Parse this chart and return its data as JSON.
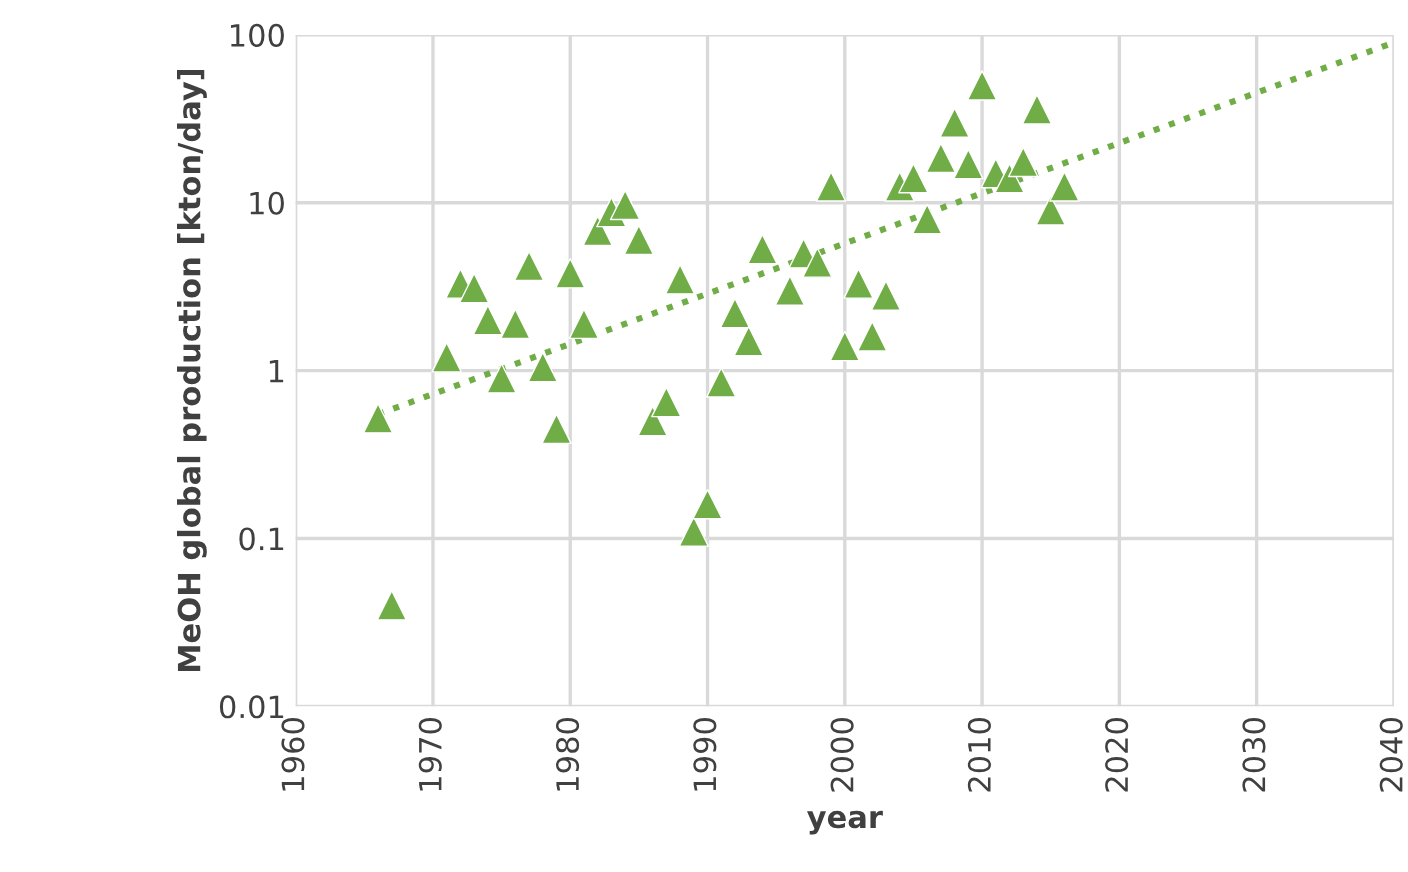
{
  "chart_data": {
    "type": "scatter",
    "xlabel": "year",
    "ylabel": "MeOH global production [kton/day]",
    "log": "y",
    "grid": true,
    "xlim": [
      1960,
      2040
    ],
    "xticks": [
      1960,
      1970,
      1980,
      1990,
      2000,
      2010,
      2020,
      2030,
      2040
    ],
    "ylim": [
      0.01,
      100
    ],
    "yticks": [
      0.01,
      0.1,
      1,
      10,
      100
    ],
    "series": [
      {
        "marker": "triangle",
        "color": "#70ad47",
        "x": [
          1966,
          1967,
          1971,
          1972,
          1973,
          1974,
          1975,
          1976,
          1977,
          1978,
          1979,
          1980,
          1981,
          1982,
          1983,
          1984,
          1985,
          1986,
          1987,
          1988,
          1989,
          1990,
          1991,
          1992,
          1993,
          1994,
          1996,
          1997,
          1998,
          1999,
          2000,
          2001,
          2002,
          2003,
          2004,
          2005,
          2006,
          2007,
          2008,
          2009,
          2010,
          2011,
          2012,
          2013,
          2014,
          2015,
          2016
        ],
        "values": [
          0.52,
          0.04,
          1.2,
          3.3,
          3.1,
          2.0,
          0.9,
          1.9,
          4.2,
          1.05,
          0.45,
          3.8,
          1.9,
          6.8,
          8.8,
          9.7,
          6.0,
          0.5,
          0.65,
          3.5,
          0.11,
          0.16,
          0.85,
          2.2,
          1.5,
          5.3,
          3.0,
          5.0,
          4.4,
          12.5,
          1.4,
          3.3,
          1.6,
          2.8,
          12.5,
          14,
          8.0,
          18.5,
          30,
          17,
          50,
          15,
          14,
          17.5,
          36,
          9,
          12.5
        ]
      },
      {
        "type": "line",
        "color": "#70ad47",
        "line_style": "dotted",
        "marker": "none",
        "x": [
          1966,
          2040
        ],
        "values": [
          0.55,
          90
        ]
      }
    ]
  }
}
